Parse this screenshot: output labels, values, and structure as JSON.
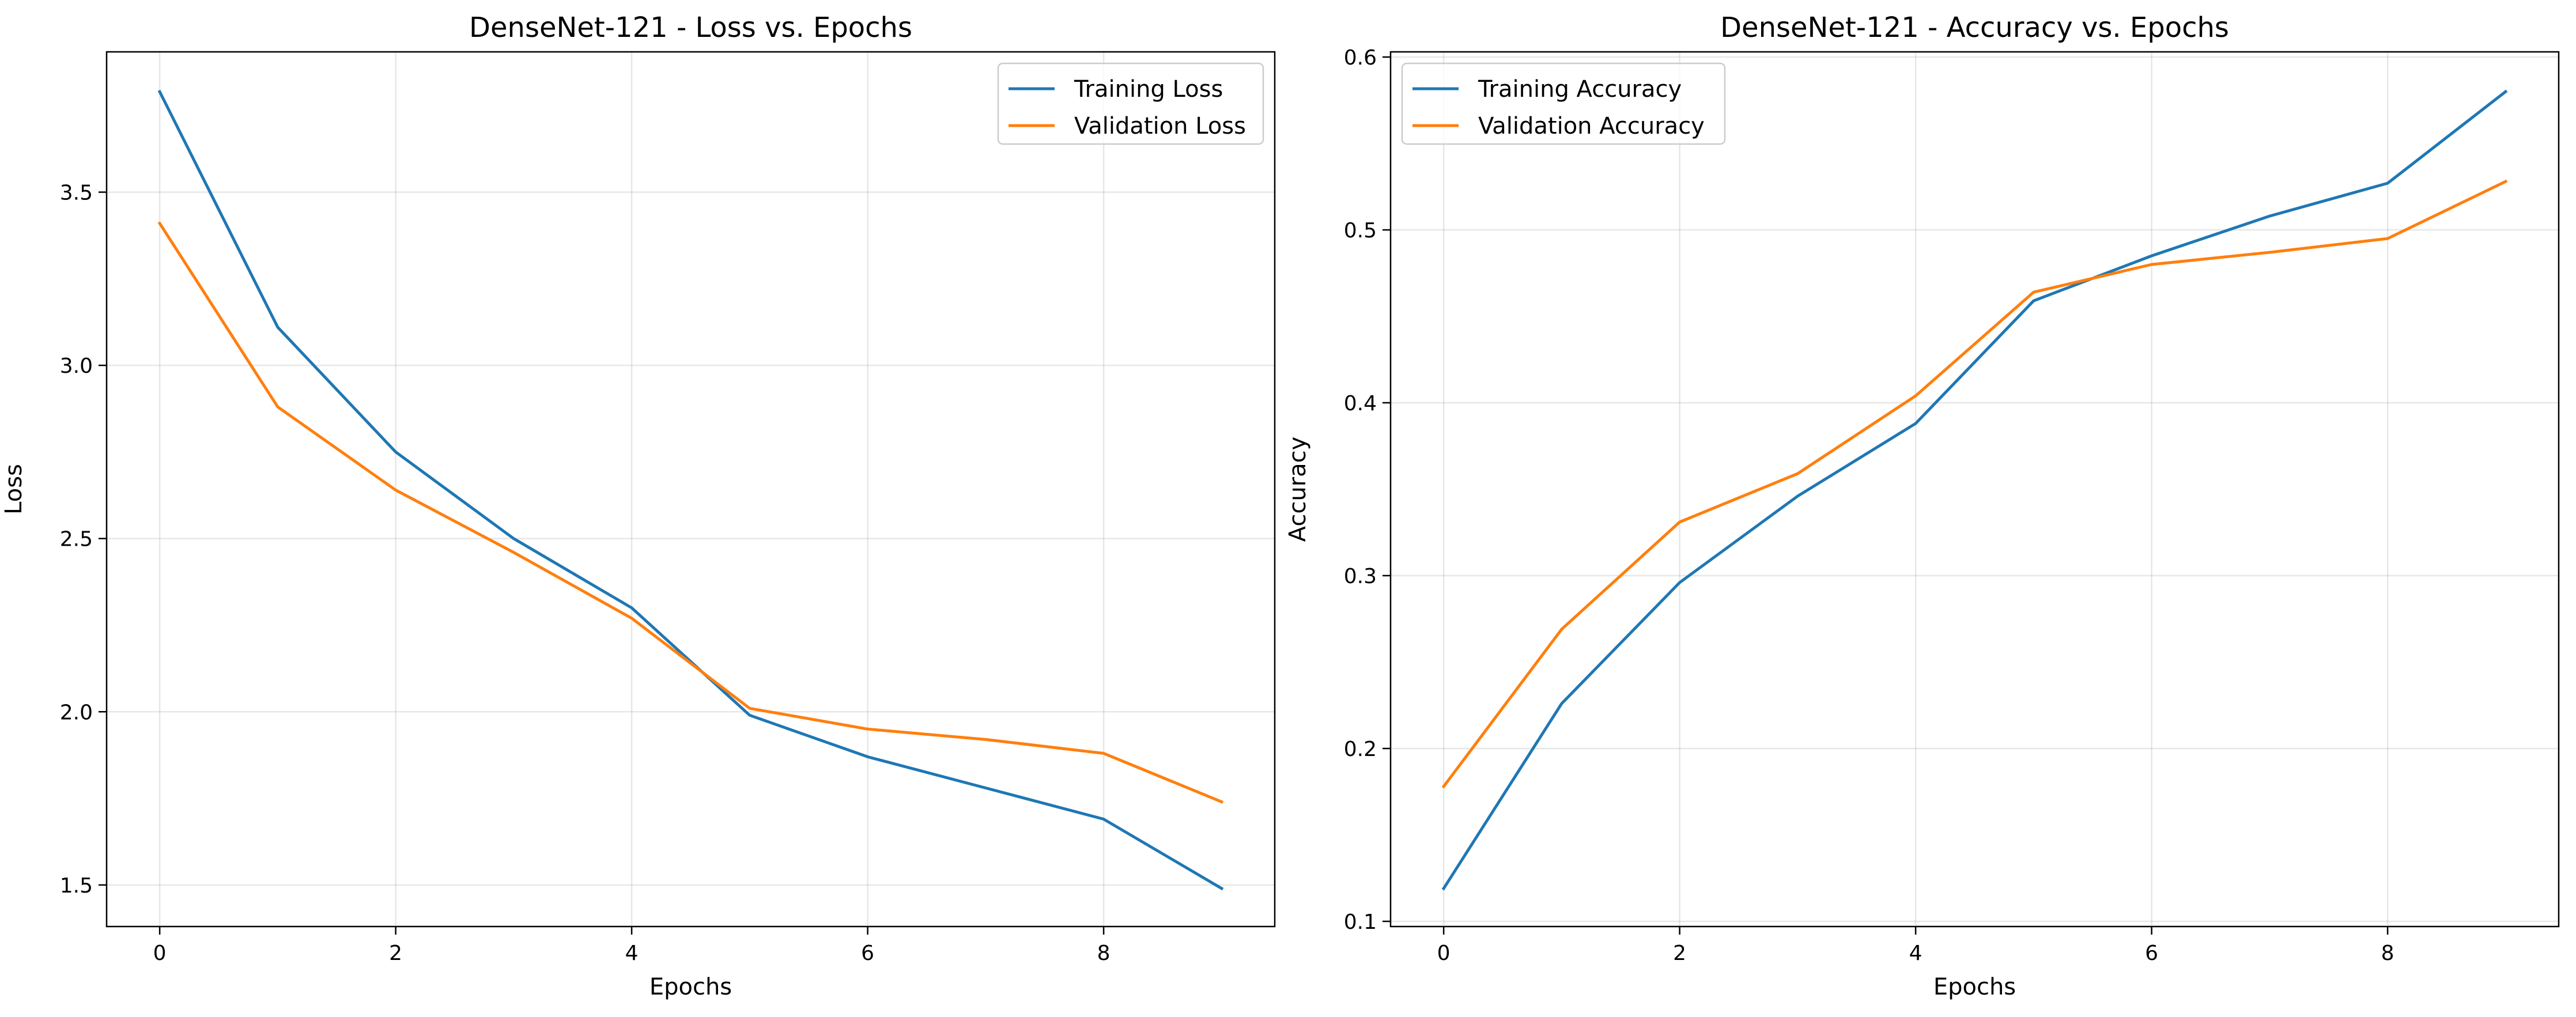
{
  "chart_data": [
    {
      "type": "line",
      "title": "DenseNet-121 - Loss vs. Epochs",
      "xlabel": "Epochs",
      "ylabel": "Loss",
      "x": [
        0,
        1,
        2,
        3,
        4,
        5,
        6,
        7,
        8,
        9
      ],
      "xlim": [
        -0.45,
        9.45
      ],
      "ylim": [
        1.38,
        3.905
      ],
      "xticks": [
        0,
        2,
        4,
        6,
        8
      ],
      "yticks": [
        1.5,
        2.0,
        2.5,
        3.0,
        3.5
      ],
      "xtick_labels": [
        "0",
        "2",
        "4",
        "6",
        "8"
      ],
      "ytick_labels": [
        "1.5",
        "2.0",
        "2.5",
        "3.0",
        "3.5"
      ],
      "grid": true,
      "legend_position": "top-right",
      "series": [
        {
          "name": "Training Loss",
          "color": "#1f77b4",
          "values": [
            3.79,
            3.11,
            2.75,
            2.5,
            2.3,
            1.99,
            1.87,
            1.78,
            1.69,
            1.49
          ]
        },
        {
          "name": "Validation Loss",
          "color": "#ff7f0e",
          "values": [
            3.41,
            2.88,
            2.64,
            2.46,
            2.27,
            2.01,
            1.95,
            1.92,
            1.88,
            1.74
          ]
        }
      ]
    },
    {
      "type": "line",
      "title": "DenseNet-121 - Accuracy vs. Epochs",
      "xlabel": "Epochs",
      "ylabel": "Accuracy",
      "x": [
        0,
        1,
        2,
        3,
        4,
        5,
        6,
        7,
        8,
        9
      ],
      "xlim": [
        -0.45,
        9.45
      ],
      "ylim": [
        0.097,
        0.603
      ],
      "xticks": [
        0,
        2,
        4,
        6,
        8
      ],
      "yticks": [
        0.1,
        0.2,
        0.3,
        0.4,
        0.5,
        0.6
      ],
      "xtick_labels": [
        "0",
        "2",
        "4",
        "6",
        "8"
      ],
      "ytick_labels": [
        "0.1",
        "0.2",
        "0.3",
        "0.4",
        "0.5",
        "0.6"
      ],
      "grid": true,
      "legend_position": "top-left",
      "series": [
        {
          "name": "Training Accuracy",
          "color": "#1f77b4",
          "values": [
            0.119,
            0.226,
            0.296,
            0.346,
            0.388,
            0.459,
            0.485,
            0.508,
            0.527,
            0.58
          ]
        },
        {
          "name": "Validation Accuracy",
          "color": "#ff7f0e",
          "values": [
            0.178,
            0.269,
            0.331,
            0.359,
            0.404,
            0.464,
            0.48,
            0.487,
            0.495,
            0.528
          ]
        }
      ]
    }
  ]
}
